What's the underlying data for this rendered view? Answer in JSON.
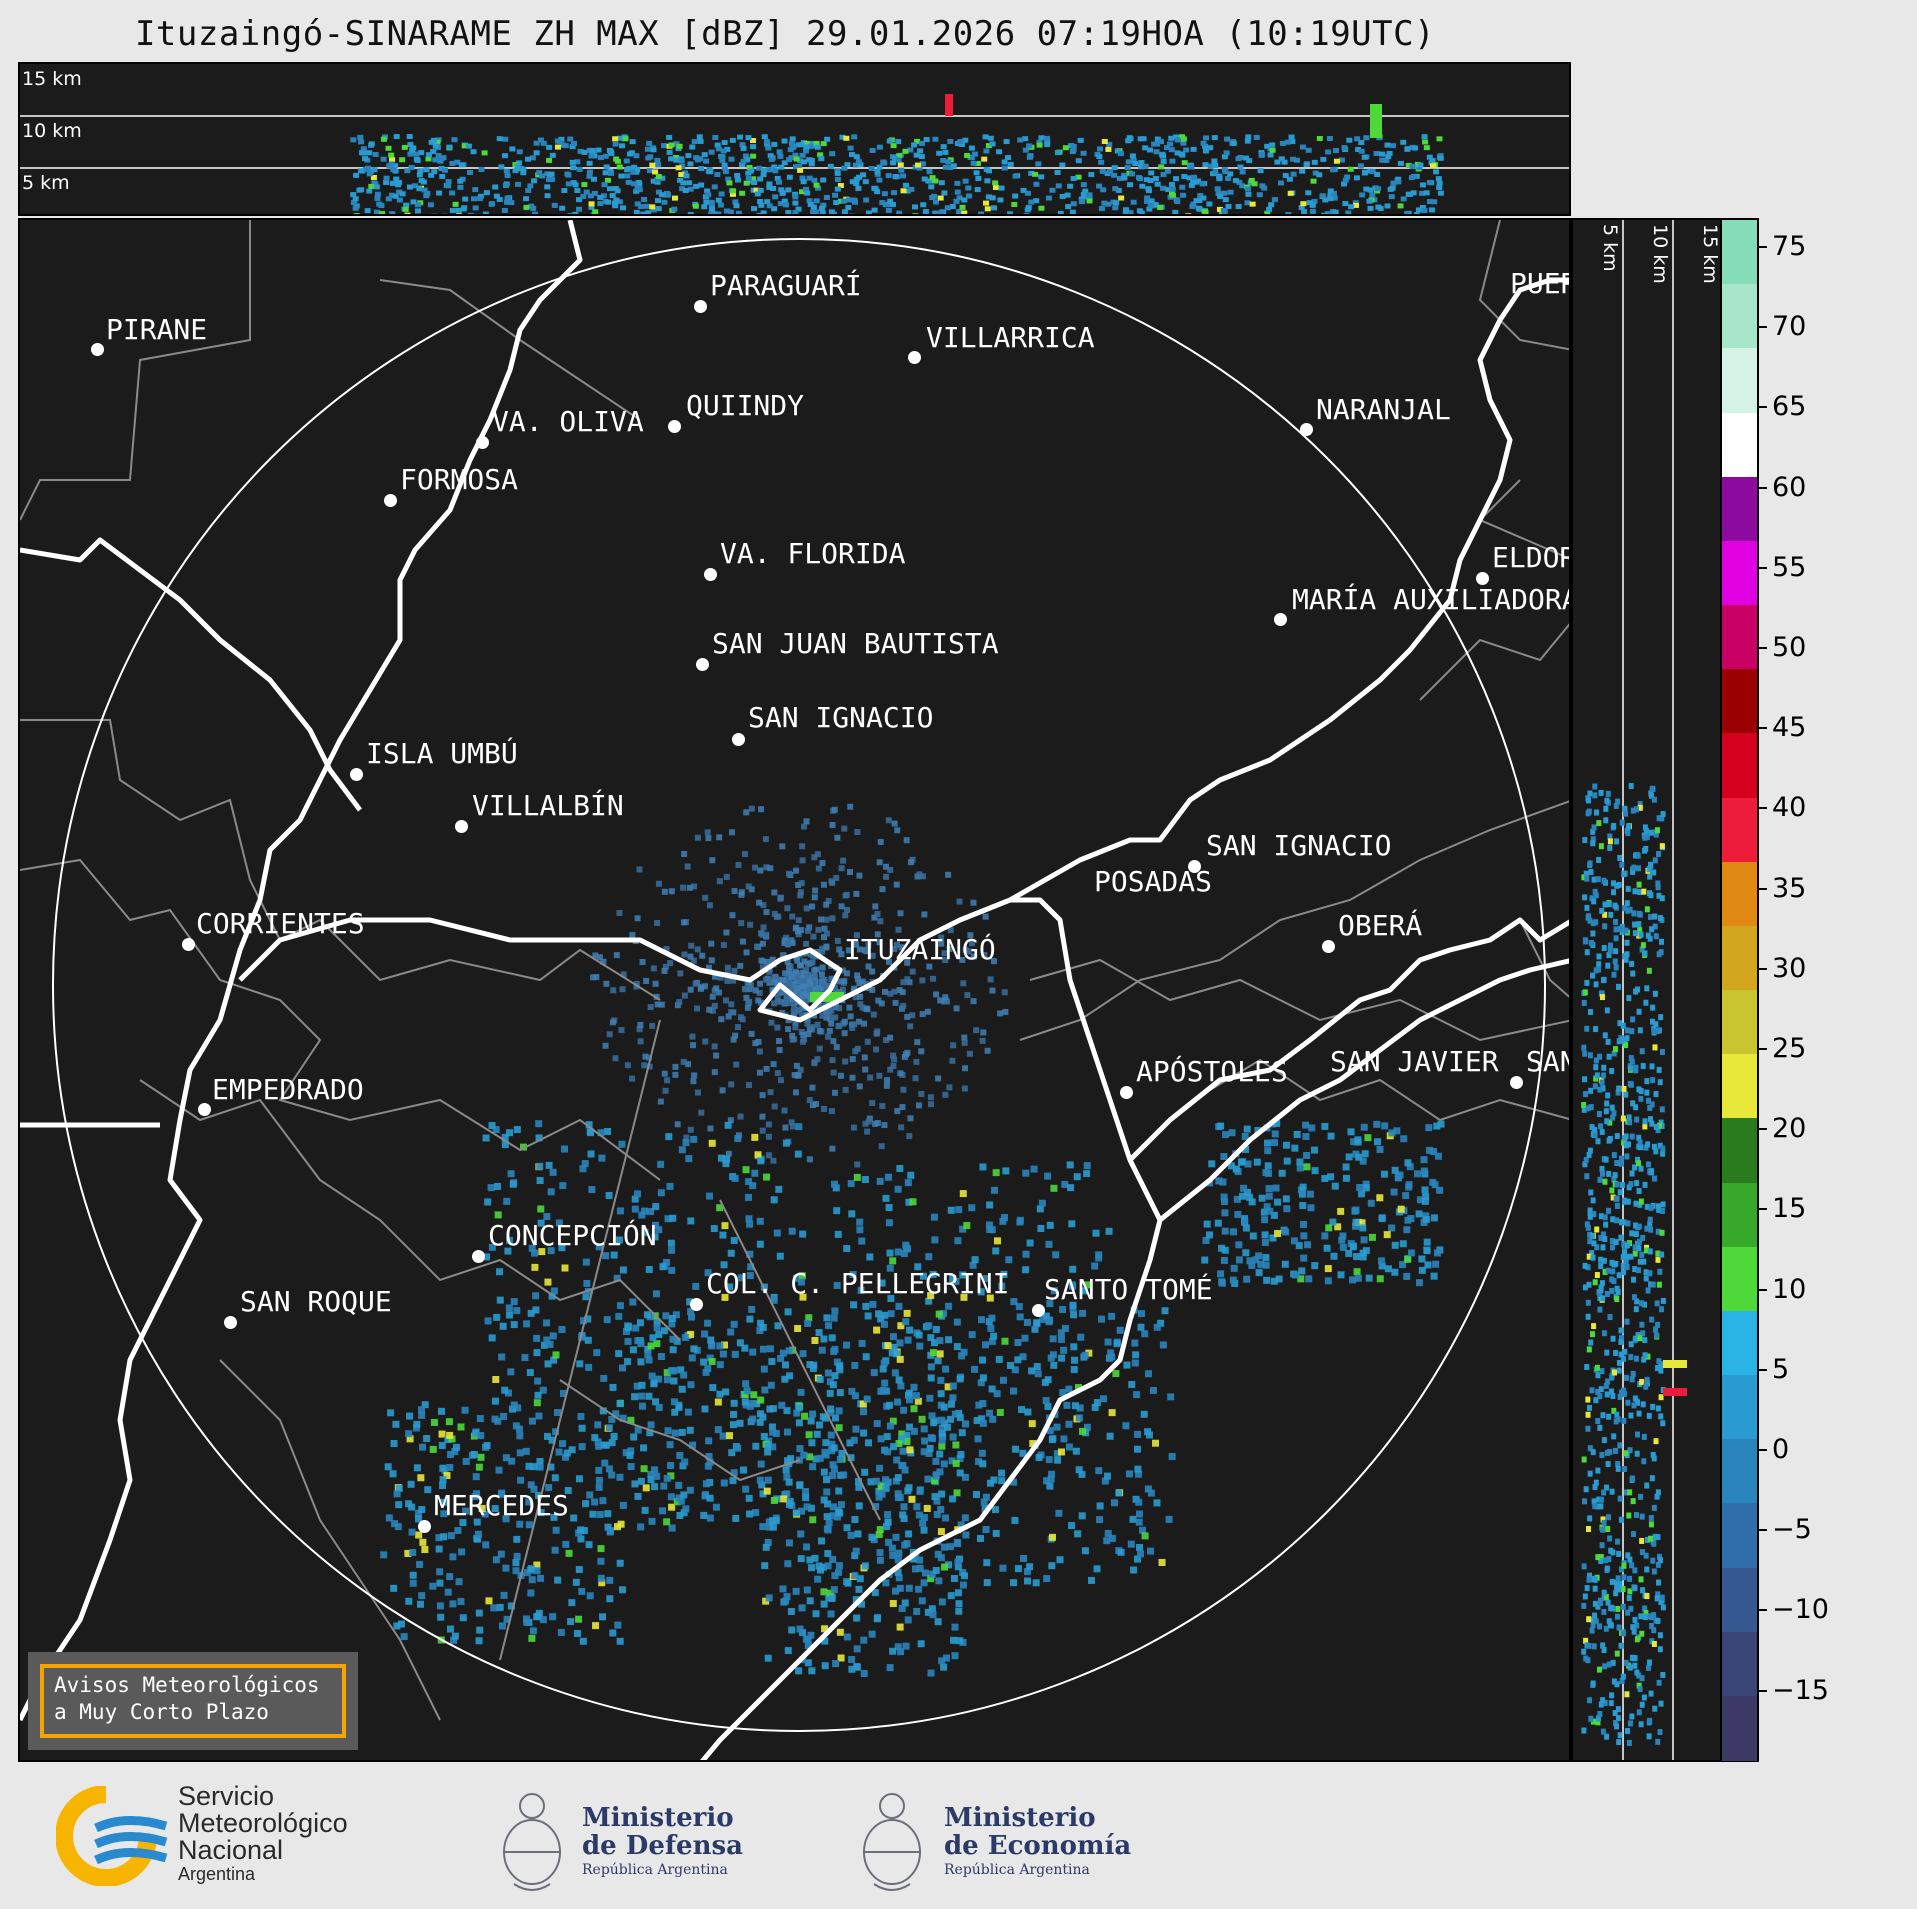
{
  "title": "Ituzaingó-SINARAME ZH MAX [dBZ] 29.01.2026 07:19HOA (10:19UTC)",
  "height_labels": [
    "15 km",
    "10 km",
    "5 km"
  ],
  "cities": [
    {
      "name": "PIRANE"
    },
    {
      "name": "PARAGUARÍ"
    },
    {
      "name": "VILLARRICA"
    },
    {
      "name": "QUIINDY"
    },
    {
      "name": "VA. OLIVA"
    },
    {
      "name": "NARANJAL"
    },
    {
      "name": "FORMOSA"
    },
    {
      "name": "VA. FLORIDA"
    },
    {
      "name": "ELDORADO"
    },
    {
      "name": "MARÍA AUXILIADORA"
    },
    {
      "name": "SAN JUAN BAUTISTA"
    },
    {
      "name": "SAN IGNACIO"
    },
    {
      "name": "ISLA UMBÚ"
    },
    {
      "name": "VILLALBÍN"
    },
    {
      "name": "SAN IGNACIO"
    },
    {
      "name": "POSADAS"
    },
    {
      "name": "CORRIENTES"
    },
    {
      "name": "ITUZAINGÓ"
    },
    {
      "name": "OBERÁ"
    },
    {
      "name": "EMPEDRADO"
    },
    {
      "name": "APÓSTOLES"
    },
    {
      "name": "SAN JAVIER"
    },
    {
      "name": "SAN"
    },
    {
      "name": "CONCEPCIÓN"
    },
    {
      "name": "COL. C. PELLEGRINI"
    },
    {
      "name": "SANTO TOMÉ"
    },
    {
      "name": "SAN ROQUE"
    },
    {
      "name": "MERCEDES"
    },
    {
      "name": "PUERTO"
    }
  ],
  "warning": {
    "line1": "Avisos Meteorológicos",
    "line2": "a Muy Corto Plazo"
  },
  "colorbar": {
    "unit": "dBZ",
    "ticks": [
      "75",
      "70",
      "65",
      "60",
      "55",
      "50",
      "45",
      "40",
      "35",
      "30",
      "25",
      "20",
      "15",
      "10",
      "5",
      "0",
      "−5",
      "−10",
      "−15"
    ],
    "colors": [
      "#85dcb8",
      "#a8e6cc",
      "#d5f2e6",
      "#ffffff",
      "#8c0a9e",
      "#e100e1",
      "#c80064",
      "#9b0000",
      "#d4001e",
      "#ee1c3b",
      "#e08a14",
      "#d2a61f",
      "#c9c530",
      "#e8e83a",
      "#2a7a1e",
      "#36a82a",
      "#4ed83a",
      "#2ab4e6",
      "#2a9bd0",
      "#2a84bc",
      "#2f6ea8",
      "#365890",
      "#3a4578",
      "#3e3a68"
    ]
  },
  "logos": {
    "smn": {
      "line1": "Servicio",
      "line2": "Meteorológico",
      "line3": "Nacional",
      "line4": "Argentina"
    },
    "defensa": {
      "line1": "Ministerio",
      "line2": "de Defensa",
      "line3": "República Argentina"
    },
    "economia": {
      "line1": "Ministerio",
      "line2": "de Economía",
      "line3": "República Argentina"
    }
  }
}
